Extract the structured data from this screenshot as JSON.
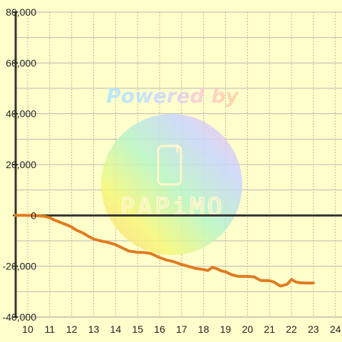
{
  "chart_data": {
    "type": "line",
    "title": "",
    "xlabel": "",
    "ylabel": "",
    "xlim": [
      9.45,
      24.3
    ],
    "ylim": [
      -40000,
      80000
    ],
    "x_ticks": [
      10,
      11,
      12,
      13,
      14,
      15,
      16,
      17,
      18,
      19,
      20,
      21,
      22,
      23,
      24
    ],
    "y_ticks": [
      -40000,
      -20000,
      0,
      20000,
      40000,
      60000,
      80000
    ],
    "y_tick_labels": [
      "-40,000",
      "-20,000",
      "0",
      "20,000",
      "40,000",
      "60,000",
      "80,000"
    ],
    "grid": true,
    "legend": "none",
    "colors": {
      "background": "#ffffcc",
      "line": "#e07b20",
      "zero_line": "#333333",
      "grid_horizontal": "#b8b8b8",
      "grid_vertical": "#b8b8a0",
      "axis": "#333333"
    },
    "series": [
      {
        "x": [
          9.45,
          10.0,
          10.5,
          10.8,
          11.0,
          11.2,
          11.5,
          11.8,
          12.0,
          12.2,
          12.5,
          12.8,
          13.0,
          13.3,
          13.6,
          14.0,
          14.3,
          14.6,
          15.0,
          15.3,
          15.6,
          16.0,
          16.3,
          16.6,
          17.0,
          17.3,
          17.6,
          18.0,
          18.2,
          18.4,
          18.6,
          18.8,
          19.0,
          19.3,
          19.6,
          20.0,
          20.3,
          20.6,
          21.0,
          21.2,
          21.5,
          21.8,
          22.0,
          22.2,
          22.4,
          22.7,
          23.0
        ],
        "y": [
          0,
          0,
          -100,
          -400,
          -900,
          -1800,
          -2800,
          -3800,
          -4600,
          -5700,
          -6900,
          -8400,
          -9300,
          -10000,
          -10500,
          -11500,
          -12800,
          -14000,
          -14500,
          -14600,
          -15000,
          -16600,
          -17500,
          -18100,
          -19300,
          -20000,
          -20800,
          -21300,
          -21700,
          -20400,
          -21000,
          -21800,
          -22200,
          -23400,
          -24000,
          -24000,
          -24200,
          -25600,
          -25700,
          -26200,
          -27800,
          -27100,
          -25200,
          -26200,
          -26500,
          -26600,
          -26600
        ]
      }
    ]
  },
  "watermark": {
    "powered_by": "Powered by",
    "logo": "PAPiMO",
    "icon": "phone-icon"
  }
}
